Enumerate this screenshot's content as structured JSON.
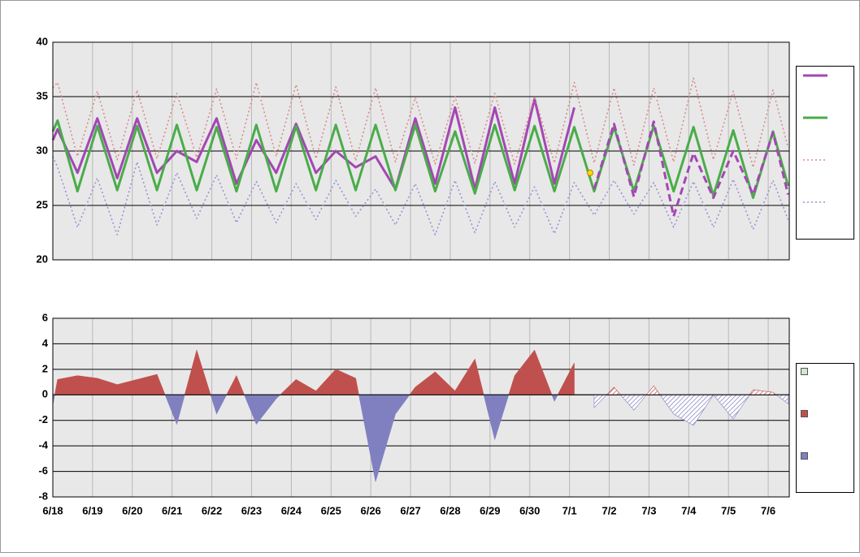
{
  "chart_data": [
    {
      "type": "line",
      "x": [
        0,
        0.12,
        0.62,
        1.12,
        1.62,
        2.12,
        2.62,
        3.12,
        3.62,
        4.12,
        4.62,
        5.12,
        5.62,
        6.12,
        6.62,
        7.12,
        7.62,
        8.12,
        8.62,
        9.12,
        9.62,
        10.12,
        10.62,
        11.12,
        11.62,
        12.12,
        12.62,
        13.12,
        13.62,
        14.12,
        14.62,
        15.12,
        15.62,
        16.12,
        16.62,
        17.12,
        17.62,
        18.12,
        18.5
      ],
      "series": [
        {
          "color": "#a347b3",
          "dash": "solid",
          "width": 3,
          "legend": true,
          "values": [
            31,
            32,
            28,
            33,
            27.5,
            33,
            28,
            30,
            29,
            33,
            27,
            31,
            28,
            32.5,
            28,
            30,
            28.5,
            29.5,
            26.5,
            33,
            27,
            34,
            26.5,
            34,
            27,
            34.8,
            27,
            34,
            null,
            null,
            null,
            null,
            null,
            null,
            null,
            null,
            null,
            null,
            null
          ]
        },
        {
          "color": "#4aac4a",
          "dash": "solid",
          "width": 3,
          "legend": true,
          "values": [
            31.8,
            32.8,
            26.3,
            32.3,
            26.4,
            32.3,
            26.4,
            32.4,
            26.4,
            32.2,
            26.3,
            32.4,
            26.3,
            32.3,
            26.4,
            32.4,
            26.4,
            32.4,
            26.4,
            32.4,
            26.3,
            31.8,
            26.1,
            32.4,
            26.4,
            32.3,
            26.3,
            32.2,
            26.3,
            32.2,
            26.3,
            32.3,
            26.3,
            32.2,
            25.9,
            31.9,
            25.7,
            31.8,
            26.8
          ]
        },
        {
          "color": "#d98c8c",
          "dash": "dotted",
          "width": 1.6,
          "legend": true,
          "values": [
            35.8,
            36.3,
            29.5,
            35.5,
            29.2,
            35.6,
            29.3,
            35.3,
            29.4,
            35.7,
            29.3,
            36.3,
            29.5,
            36.1,
            29.3,
            35.9,
            29.1,
            35.8,
            29,
            34.9,
            28.8,
            35,
            28.9,
            35.3,
            28.8,
            35,
            28.9,
            36.3,
            28.9,
            35.8,
            28.7,
            35.8,
            29,
            36.7,
            29.2,
            35.5,
            28.5,
            35.6,
            30.3
          ]
        },
        {
          "color": "#9a92d6",
          "dash": "dotted",
          "width": 1.6,
          "legend": true,
          "values": [
            29.5,
            28.5,
            23,
            27.5,
            22.3,
            29,
            23.2,
            28,
            23.8,
            27.8,
            23.4,
            27.2,
            23.4,
            27,
            23.7,
            27.3,
            24,
            26.5,
            23.2,
            27,
            22.3,
            27.3,
            22.5,
            27.2,
            23,
            26.7,
            22.4,
            27.1,
            24.1,
            27.3,
            24.2,
            27.1,
            23,
            27.2,
            23,
            27.4,
            22.8,
            27.3,
            23.7
          ]
        },
        {
          "color": "#a347b3",
          "dash": "dashed",
          "width": 3,
          "legend": false,
          "values": [
            null,
            null,
            null,
            null,
            null,
            null,
            null,
            null,
            null,
            null,
            null,
            null,
            null,
            null,
            null,
            null,
            null,
            null,
            null,
            null,
            null,
            null,
            null,
            null,
            null,
            null,
            null,
            null,
            26.5,
            32.5,
            25.8,
            32.7,
            24,
            29.8,
            25.7,
            30,
            26,
            31.7,
            26
          ]
        }
      ],
      "marker": {
        "x": 13.52,
        "y": 28,
        "color": "#ffd700"
      },
      "xlim": [
        0,
        18.53
      ],
      "xticks": [
        0,
        1,
        2,
        3,
        4,
        5,
        6,
        7,
        8,
        9,
        10,
        11,
        12,
        13,
        14,
        15,
        16,
        17,
        18
      ],
      "ylim": [
        20,
        40
      ],
      "yticks": [
        20,
        25,
        30,
        35,
        40
      ],
      "grid": true
    },
    {
      "type": "area",
      "x": [
        0,
        0.12,
        0.62,
        1.12,
        1.62,
        2.12,
        2.62,
        3.12,
        3.62,
        4.12,
        4.62,
        5.12,
        5.62,
        6.12,
        6.62,
        7.12,
        7.62,
        8.12,
        8.62,
        9.12,
        9.62,
        10.12,
        10.62,
        11.12,
        11.62,
        12.12,
        12.62,
        13.12,
        13.62,
        14.12,
        14.62,
        15.12,
        15.62,
        16.12,
        16.62,
        17.12,
        17.62,
        18.12,
        18.5
      ],
      "positive_color": "#c0504d",
      "negative_color": "#8080c0",
      "legend_colors": [
        "#cfe8cf",
        "#c0504d",
        "#8080c0"
      ],
      "series": [
        {
          "hatched": false,
          "values": [
            -0.8,
            1.2,
            1.5,
            1.3,
            0.8,
            1.2,
            1.6,
            -2.3,
            3.5,
            -1.5,
            1.5,
            -2.3,
            -0.3,
            1.2,
            0.3,
            2.0,
            1.3,
            -6.8,
            -1.5,
            0.6,
            1.8,
            0.3,
            2.8,
            -3.5,
            1.5,
            3.5,
            -0.5,
            2.5,
            null,
            null,
            null,
            null,
            null,
            null,
            null,
            null,
            null,
            null,
            null
          ]
        },
        {
          "hatched": true,
          "values": [
            null,
            null,
            null,
            null,
            null,
            null,
            null,
            null,
            null,
            null,
            null,
            null,
            null,
            null,
            null,
            null,
            null,
            null,
            null,
            null,
            null,
            null,
            null,
            null,
            null,
            null,
            null,
            null,
            -1.0,
            0.6,
            -1.2,
            0.7,
            -1.5,
            -2.4,
            0,
            -1.9,
            0.4,
            0.2,
            -0.7
          ]
        }
      ],
      "xlim": [
        0,
        18.53
      ],
      "xticks": [
        {
          "value": 0,
          "label": "6/18"
        },
        {
          "value": 1,
          "label": "6/19"
        },
        {
          "value": 2,
          "label": "6/20"
        },
        {
          "value": 3,
          "label": "6/21"
        },
        {
          "value": 4,
          "label": "6/22"
        },
        {
          "value": 5,
          "label": "6/23"
        },
        {
          "value": 6,
          "label": "6/24"
        },
        {
          "value": 7,
          "label": "6/25"
        },
        {
          "value": 8,
          "label": "6/26"
        },
        {
          "value": 9,
          "label": "6/27"
        },
        {
          "value": 10,
          "label": "6/28"
        },
        {
          "value": 11,
          "label": "6/29"
        },
        {
          "value": 12,
          "label": "6/30"
        },
        {
          "value": 13,
          "label": "7/1"
        },
        {
          "value": 14,
          "label": "7/2"
        },
        {
          "value": 15,
          "label": "7/3"
        },
        {
          "value": 16,
          "label": "7/4"
        },
        {
          "value": 17,
          "label": "7/5"
        },
        {
          "value": 18,
          "label": "7/6"
        }
      ],
      "ylim": [
        -8,
        6
      ],
      "yticks": [
        -8,
        -6,
        -4,
        -2,
        0,
        2,
        4,
        6
      ],
      "grid": true
    }
  ]
}
